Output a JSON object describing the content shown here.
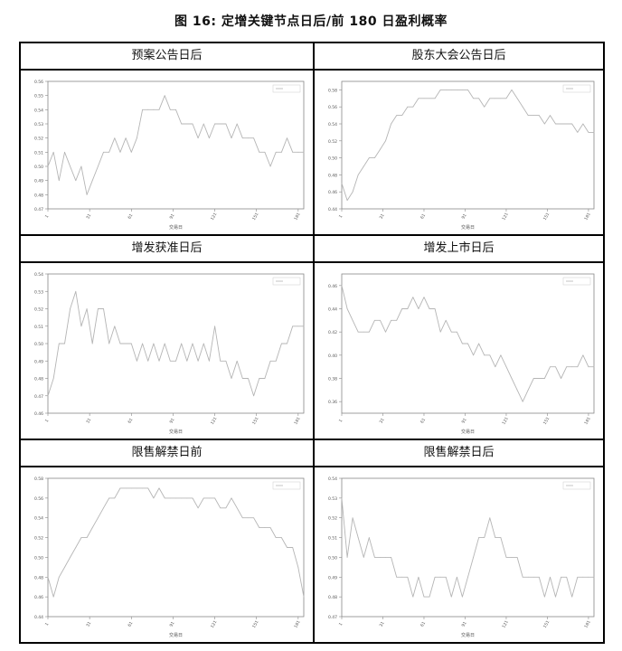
{
  "figure": {
    "title": "图 16:  定增关键节点日后/前 180 日盈利概率"
  },
  "colors": {
    "line": "#b5b5b5",
    "frame": "#888888",
    "text": "#555555"
  },
  "chart_data": [
    {
      "type": "line",
      "title": "预案公告日后",
      "xlabel": "交易日",
      "ylim": [
        0.47,
        0.56
      ],
      "yticks": [
        0.47,
        0.48,
        0.49,
        0.5,
        0.51,
        0.52,
        0.53,
        0.54,
        0.55,
        0.56
      ],
      "ytick_labels": [
        "0.47",
        "0.48",
        "0.49",
        "0.50",
        "0.51",
        "0.52",
        "0.53",
        "0.54",
        "0.55",
        "0.56"
      ],
      "xticks": [
        1,
        31,
        61,
        91,
        121,
        151,
        181
      ],
      "xtick_labels": [
        "1",
        "31",
        "61",
        "91",
        "121",
        "151",
        "181"
      ],
      "xlim": [
        1,
        185
      ],
      "legend": "top-right",
      "series": [
        {
          "x": [
            1,
            5,
            9,
            13,
            17,
            21,
            25,
            29,
            33,
            37,
            41,
            45,
            49,
            53,
            57,
            61,
            65,
            69,
            73,
            77,
            81,
            85,
            89,
            93,
            97,
            101,
            105,
            109,
            113,
            117,
            121,
            125,
            129,
            133,
            137,
            141,
            145,
            149,
            153,
            157,
            161,
            165,
            169,
            173,
            177,
            181,
            185
          ],
          "values": [
            0.5,
            0.51,
            0.49,
            0.51,
            0.5,
            0.49,
            0.5,
            0.48,
            0.49,
            0.5,
            0.51,
            0.51,
            0.52,
            0.51,
            0.52,
            0.51,
            0.52,
            0.54,
            0.54,
            0.54,
            0.54,
            0.55,
            0.54,
            0.54,
            0.53,
            0.53,
            0.53,
            0.52,
            0.53,
            0.52,
            0.53,
            0.53,
            0.53,
            0.52,
            0.53,
            0.52,
            0.52,
            0.52,
            0.51,
            0.51,
            0.5,
            0.51,
            0.51,
            0.52,
            0.51,
            0.51,
            0.51
          ]
        }
      ]
    },
    {
      "type": "line",
      "title": "股东大会公告日后",
      "xlabel": "交易日",
      "ylim": [
        0.44,
        0.59
      ],
      "yticks": [
        0.44,
        0.46,
        0.48,
        0.5,
        0.52,
        0.54,
        0.56,
        0.58
      ],
      "ytick_labels": [
        "0.44",
        "0.46",
        "0.48",
        "0.50",
        "0.52",
        "0.54",
        "0.56",
        "0.58"
      ],
      "xticks": [
        1,
        31,
        61,
        91,
        121,
        151,
        181
      ],
      "xtick_labels": [
        "1",
        "31",
        "61",
        "91",
        "121",
        "151",
        "181"
      ],
      "xlim": [
        1,
        185
      ],
      "legend": "top-right",
      "series": [
        {
          "x": [
            1,
            5,
            9,
            13,
            17,
            21,
            25,
            29,
            33,
            37,
            41,
            45,
            49,
            53,
            57,
            61,
            65,
            69,
            73,
            77,
            81,
            85,
            89,
            93,
            97,
            101,
            105,
            109,
            113,
            117,
            121,
            125,
            129,
            133,
            137,
            141,
            145,
            149,
            153,
            157,
            161,
            165,
            169,
            173,
            177,
            181,
            185
          ],
          "values": [
            0.47,
            0.45,
            0.46,
            0.48,
            0.49,
            0.5,
            0.5,
            0.51,
            0.52,
            0.54,
            0.55,
            0.55,
            0.56,
            0.56,
            0.57,
            0.57,
            0.57,
            0.57,
            0.58,
            0.58,
            0.58,
            0.58,
            0.58,
            0.58,
            0.57,
            0.57,
            0.56,
            0.57,
            0.57,
            0.57,
            0.57,
            0.58,
            0.57,
            0.56,
            0.55,
            0.55,
            0.55,
            0.54,
            0.55,
            0.54,
            0.54,
            0.54,
            0.54,
            0.53,
            0.54,
            0.53,
            0.53
          ]
        }
      ]
    },
    {
      "type": "line",
      "title": "增发获准日后",
      "xlabel": "交易日",
      "ylim": [
        0.46,
        0.54
      ],
      "yticks": [
        0.46,
        0.47,
        0.48,
        0.49,
        0.5,
        0.51,
        0.52,
        0.53,
        0.54
      ],
      "ytick_labels": [
        "0.46",
        "0.47",
        "0.48",
        "0.49",
        "0.50",
        "0.51",
        "0.52",
        "0.53",
        "0.54"
      ],
      "xticks": [
        1,
        31,
        61,
        91,
        121,
        151,
        181
      ],
      "xtick_labels": [
        "1",
        "31",
        "61",
        "91",
        "121",
        "151",
        "181"
      ],
      "xlim": [
        1,
        185
      ],
      "legend": "top-right",
      "series": [
        {
          "x": [
            1,
            5,
            9,
            13,
            17,
            21,
            25,
            29,
            33,
            37,
            41,
            45,
            49,
            53,
            57,
            61,
            65,
            69,
            73,
            77,
            81,
            85,
            89,
            93,
            97,
            101,
            105,
            109,
            113,
            117,
            121,
            125,
            129,
            133,
            137,
            141,
            145,
            149,
            153,
            157,
            161,
            165,
            169,
            173,
            177,
            181,
            185
          ],
          "values": [
            0.47,
            0.48,
            0.5,
            0.5,
            0.52,
            0.53,
            0.51,
            0.52,
            0.5,
            0.52,
            0.52,
            0.5,
            0.51,
            0.5,
            0.5,
            0.5,
            0.49,
            0.5,
            0.49,
            0.5,
            0.49,
            0.5,
            0.49,
            0.49,
            0.5,
            0.49,
            0.5,
            0.49,
            0.5,
            0.49,
            0.51,
            0.49,
            0.49,
            0.48,
            0.49,
            0.48,
            0.48,
            0.47,
            0.48,
            0.48,
            0.49,
            0.49,
            0.5,
            0.5,
            0.51,
            0.51,
            0.51
          ]
        }
      ]
    },
    {
      "type": "line",
      "title": "增发上市日后",
      "xlabel": "交易日",
      "ylim": [
        0.35,
        0.47
      ],
      "yticks": [
        0.36,
        0.38,
        0.4,
        0.42,
        0.44,
        0.46
      ],
      "ytick_labels": [
        "0.36",
        "0.38",
        "0.40",
        "0.42",
        "0.44",
        "0.46"
      ],
      "xticks": [
        1,
        31,
        61,
        91,
        121,
        151,
        181
      ],
      "xtick_labels": [
        "1",
        "31",
        "61",
        "91",
        "121",
        "151",
        "181"
      ],
      "xlim": [
        1,
        185
      ],
      "legend": "top-right",
      "series": [
        {
          "x": [
            1,
            5,
            9,
            13,
            17,
            21,
            25,
            29,
            33,
            37,
            41,
            45,
            49,
            53,
            57,
            61,
            65,
            69,
            73,
            77,
            81,
            85,
            89,
            93,
            97,
            101,
            105,
            109,
            113,
            117,
            121,
            125,
            129,
            133,
            137,
            141,
            145,
            149,
            153,
            157,
            161,
            165,
            169,
            173,
            177,
            181,
            185
          ],
          "values": [
            0.46,
            0.44,
            0.43,
            0.42,
            0.42,
            0.42,
            0.43,
            0.43,
            0.42,
            0.43,
            0.43,
            0.44,
            0.44,
            0.45,
            0.44,
            0.45,
            0.44,
            0.44,
            0.42,
            0.43,
            0.42,
            0.42,
            0.41,
            0.41,
            0.4,
            0.41,
            0.4,
            0.4,
            0.39,
            0.4,
            0.39,
            0.38,
            0.37,
            0.36,
            0.37,
            0.38,
            0.38,
            0.38,
            0.39,
            0.39,
            0.38,
            0.39,
            0.39,
            0.39,
            0.4,
            0.39,
            0.39
          ]
        }
      ]
    },
    {
      "type": "line",
      "title": "限售解禁日前",
      "xlabel": "交易日",
      "ylim": [
        0.44,
        0.58
      ],
      "yticks": [
        0.44,
        0.46,
        0.48,
        0.5,
        0.52,
        0.54,
        0.56,
        0.58
      ],
      "ytick_labels": [
        "0.44",
        "0.46",
        "0.48",
        "0.50",
        "0.52",
        "0.54",
        "0.56",
        "0.58"
      ],
      "xticks": [
        1,
        31,
        61,
        91,
        121,
        151,
        181
      ],
      "xtick_labels": [
        "1",
        "31",
        "61",
        "91",
        "121",
        "151",
        "181"
      ],
      "xlim": [
        1,
        185
      ],
      "legend": "top-right",
      "series": [
        {
          "x": [
            1,
            5,
            9,
            13,
            17,
            21,
            25,
            29,
            33,
            37,
            41,
            45,
            49,
            53,
            57,
            61,
            65,
            69,
            73,
            77,
            81,
            85,
            89,
            93,
            97,
            101,
            105,
            109,
            113,
            117,
            121,
            125,
            129,
            133,
            137,
            141,
            145,
            149,
            153,
            157,
            161,
            165,
            169,
            173,
            177,
            181,
            185
          ],
          "values": [
            0.48,
            0.46,
            0.48,
            0.49,
            0.5,
            0.51,
            0.52,
            0.52,
            0.53,
            0.54,
            0.55,
            0.56,
            0.56,
            0.57,
            0.57,
            0.57,
            0.57,
            0.57,
            0.57,
            0.56,
            0.57,
            0.56,
            0.56,
            0.56,
            0.56,
            0.56,
            0.56,
            0.55,
            0.56,
            0.56,
            0.56,
            0.55,
            0.55,
            0.56,
            0.55,
            0.54,
            0.54,
            0.54,
            0.53,
            0.53,
            0.53,
            0.52,
            0.52,
            0.51,
            0.51,
            0.49,
            0.46
          ]
        }
      ]
    },
    {
      "type": "line",
      "title": "限售解禁日后",
      "xlabel": "交易日",
      "ylim": [
        0.47,
        0.54
      ],
      "yticks": [
        0.47,
        0.48,
        0.49,
        0.5,
        0.51,
        0.52,
        0.53,
        0.54
      ],
      "ytick_labels": [
        "0.47",
        "0.48",
        "0.49",
        "0.50",
        "0.51",
        "0.52",
        "0.53",
        "0.54"
      ],
      "xticks": [
        1,
        31,
        61,
        91,
        121,
        151,
        181
      ],
      "xtick_labels": [
        "1",
        "31",
        "61",
        "91",
        "121",
        "151",
        "181"
      ],
      "xlim": [
        1,
        185
      ],
      "legend": "top-right",
      "series": [
        {
          "x": [
            1,
            5,
            9,
            13,
            17,
            21,
            25,
            29,
            33,
            37,
            41,
            45,
            49,
            53,
            57,
            61,
            65,
            69,
            73,
            77,
            81,
            85,
            89,
            93,
            97,
            101,
            105,
            109,
            113,
            117,
            121,
            125,
            129,
            133,
            137,
            141,
            145,
            149,
            153,
            157,
            161,
            165,
            169,
            173,
            177,
            181,
            185
          ],
          "values": [
            0.53,
            0.5,
            0.52,
            0.51,
            0.5,
            0.51,
            0.5,
            0.5,
            0.5,
            0.5,
            0.49,
            0.49,
            0.49,
            0.48,
            0.49,
            0.48,
            0.48,
            0.49,
            0.49,
            0.49,
            0.48,
            0.49,
            0.48,
            0.49,
            0.5,
            0.51,
            0.51,
            0.52,
            0.51,
            0.51,
            0.5,
            0.5,
            0.5,
            0.49,
            0.49,
            0.49,
            0.49,
            0.48,
            0.49,
            0.48,
            0.49,
            0.49,
            0.48,
            0.49,
            0.49,
            0.49,
            0.49
          ]
        }
      ]
    }
  ]
}
